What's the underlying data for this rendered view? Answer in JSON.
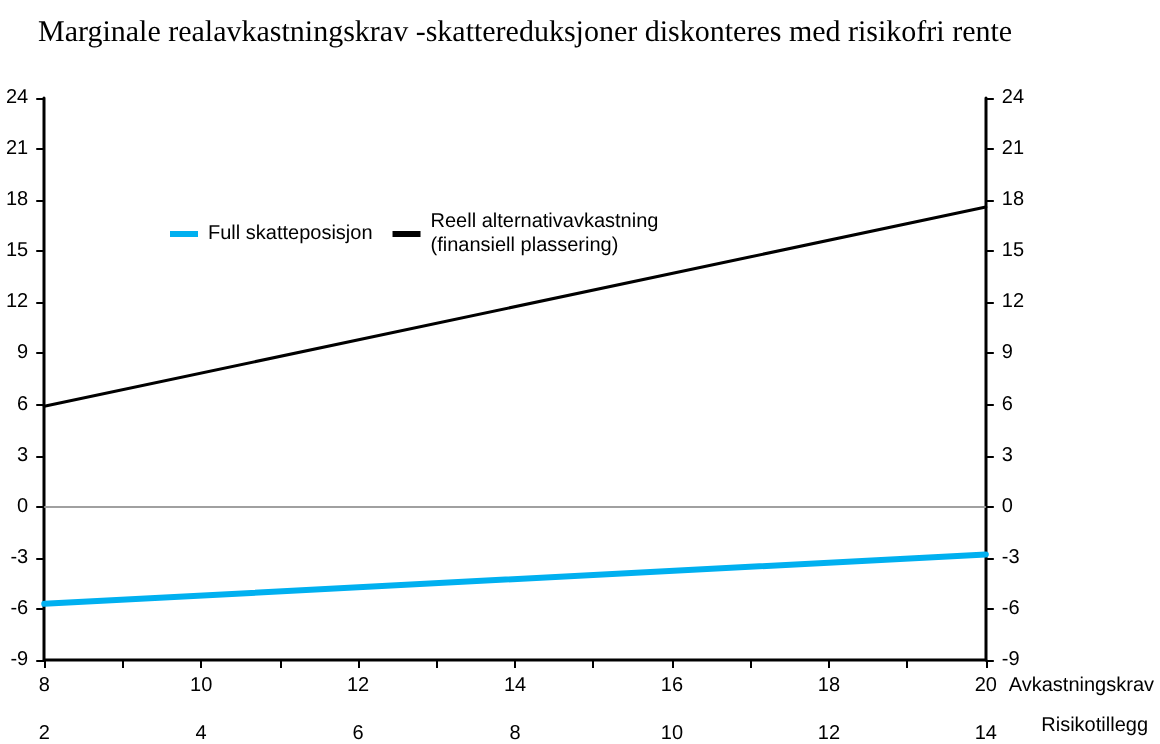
{
  "chart_data": {
    "type": "line",
    "title": "Marginale realavkastningskrav -skattereduksjoner diskonteres med risikofri rente",
    "xlabel": "Avkastningskrav",
    "x2label": "Risikotillegg",
    "x": [
      8,
      20
    ],
    "series": [
      {
        "name": "Full skatteposisjon",
        "color": "#00b0f0",
        "values": [
          -5.7,
          -2.8
        ]
      },
      {
        "name": "Reell alternativavkastning\n(finansiell plassering)",
        "color": "#000000",
        "values": [
          5.9,
          17.6
        ]
      }
    ],
    "xlim": [
      8,
      20
    ],
    "xticks": [
      8,
      {
        "value": 9,
        "label": null
      },
      10,
      {
        "value": 11,
        "label": null
      },
      12,
      {
        "value": 13,
        "label": null
      },
      14,
      {
        "value": 15,
        "label": null
      },
      16,
      {
        "value": 17,
        "label": null
      },
      18,
      {
        "value": 19,
        "label": null
      },
      20
    ],
    "x2lim": [
      2,
      14
    ],
    "x2ticks": [
      2,
      4,
      6,
      8,
      10,
      12,
      14
    ],
    "ylim": [
      -9,
      24
    ],
    "yticks": [
      -9,
      -6,
      -3,
      0,
      3,
      6,
      9,
      12,
      15,
      18,
      21,
      24
    ],
    "y2lim": [
      -9,
      24
    ],
    "y2ticks": [
      -9,
      -6,
      -3,
      0,
      3,
      6,
      9,
      12,
      15,
      18,
      21,
      24
    ],
    "ref_lines": [
      {
        "axis": "y",
        "value": 0,
        "color": "#a0a0a0"
      }
    ],
    "grid": false,
    "legend": "top left",
    "marker": "none",
    "line_style": "solid"
  }
}
